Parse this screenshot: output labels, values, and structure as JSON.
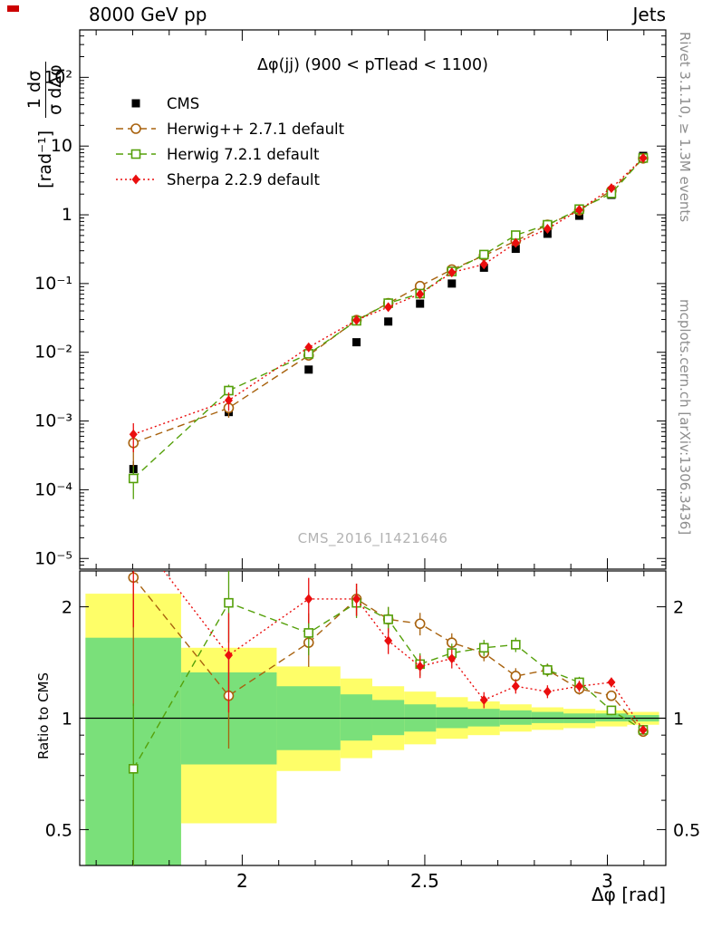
{
  "header": {
    "left": "8000 GeV pp",
    "right": "Jets"
  },
  "watermark": "CMS_2016_I1421646",
  "notes": {
    "rivet": "Rivet 3.1.10, ≥ 1.3M events",
    "mcplots": "mcplots.cern.ch [arXiv:1306.3436]"
  },
  "axis_labels": {
    "y_num": "1 dσ",
    "y_den": "σ dΔφ",
    "y_units": "[rad⁻¹]"
  },
  "chart_data": {
    "type": "line",
    "panels": [
      "distribution",
      "ratio"
    ],
    "title": "Δφ(jj) (900 < pTlead < 1100)",
    "xlabel": "Δφ [rad]",
    "ylabel": "1/σ dσ/dΔφ [rad⁻¹]",
    "ratio_ylabel": "Ratio to CMS",
    "xlim": [
      1.555,
      3.16
    ],
    "xticks": [
      {
        "v": 2,
        "label": "2"
      },
      {
        "v": 2.5,
        "label": "2.5"
      },
      {
        "v": 3,
        "label": "3"
      }
    ],
    "x_minor_step": 0.1,
    "bin_edges": [
      1.5708,
      1.8326,
      2.0944,
      2.2689,
      2.3562,
      2.4435,
      2.5307,
      2.618,
      2.7053,
      2.7925,
      2.8798,
      2.9671,
      3.0543,
      3.1416
    ],
    "x": [
      1.702,
      1.963,
      2.182,
      2.313,
      2.4,
      2.487,
      2.574,
      2.662,
      2.749,
      2.836,
      2.923,
      3.011,
      3.098
    ],
    "main": {
      "ylim": [
        7e-06,
        490
      ],
      "yticks": [
        {
          "v": 100,
          "label": "10²"
        },
        {
          "v": 10,
          "label": "10"
        },
        {
          "v": 1,
          "label": "1"
        },
        {
          "v": 0.1,
          "label": "10⁻¹"
        },
        {
          "v": 0.01,
          "label": "10⁻²"
        },
        {
          "v": 0.001,
          "label": "10⁻³"
        },
        {
          "v": 0.0001,
          "label": "10⁻⁴"
        },
        {
          "v": 1e-05,
          "label": "10⁻⁵"
        }
      ]
    },
    "ratio": {
      "ylim": [
        0.4,
        2.5
      ],
      "yticks": [
        {
          "v": 2,
          "label": "2"
        },
        {
          "v": 1,
          "label": "1"
        },
        {
          "v": 0.5,
          "label": "0.5"
        }
      ]
    },
    "series": [
      {
        "id": "cms",
        "name": "CMS",
        "marker": "square-filled",
        "color": "#000000",
        "line": "none",
        "values": [
          0.0002,
          0.00135,
          0.0056,
          0.014,
          0.028,
          0.051,
          0.1,
          0.17,
          0.32,
          0.53,
          0.97,
          1.95,
          7.2
        ],
        "yerr_rel": [
          0.3,
          0.12,
          0.07,
          0.05,
          0.04,
          0.035,
          0.03,
          0.025,
          0.02,
          0.02,
          0.015,
          0.012,
          0.01
        ],
        "ratio": null
      },
      {
        "id": "herwigpp",
        "name": "Herwig++ 2.7.1 default",
        "marker": "circle-open",
        "color": "#a8620e",
        "line": "dashed",
        "values": [
          0.00048,
          0.00155,
          0.009,
          0.0294,
          0.0518,
          0.0918,
          0.16,
          0.255,
          0.416,
          0.716,
          1.16,
          2.24,
          6.62
        ],
        "ratio": [
          2.4,
          1.15,
          1.6,
          2.1,
          1.85,
          1.8,
          1.6,
          1.5,
          1.3,
          1.35,
          1.2,
          1.15,
          0.92
        ],
        "yerr_rel": [
          0.55,
          0.28,
          0.14,
          0.1,
          0.08,
          0.07,
          0.06,
          0.05,
          0.05,
          0.04,
          0.035,
          0.03,
          0.025
        ]
      },
      {
        "id": "herwig7",
        "name": "Herwig 7.2.1 default",
        "marker": "square-open",
        "color": "#55a00a",
        "line": "dashed",
        "values": [
          0.000146,
          0.00277,
          0.0095,
          0.0287,
          0.0518,
          0.0714,
          0.15,
          0.264,
          0.506,
          0.716,
          1.21,
          2.05,
          6.7
        ],
        "ratio": [
          0.73,
          2.05,
          1.7,
          2.05,
          1.85,
          1.4,
          1.5,
          1.55,
          1.58,
          1.35,
          1.25,
          1.05,
          0.93
        ],
        "yerr_rel": [
          0.5,
          0.22,
          0.13,
          0.09,
          0.08,
          0.07,
          0.06,
          0.05,
          0.045,
          0.04,
          0.035,
          0.03,
          0.025
        ]
      },
      {
        "id": "sherpa",
        "name": "Sherpa 2.2.9 default",
        "marker": "diamond-filled",
        "color": "#ea0e0e",
        "line": "dotted",
        "values": [
          0.00064,
          0.002,
          0.0118,
          0.0294,
          0.0454,
          0.0704,
          0.145,
          0.19,
          0.39,
          0.625,
          1.18,
          2.44,
          6.7
        ],
        "ratio": [
          3.2,
          1.48,
          2.1,
          2.1,
          1.62,
          1.38,
          1.45,
          1.12,
          1.22,
          1.18,
          1.22,
          1.25,
          0.93
        ],
        "yerr_rel": [
          0.45,
          0.3,
          0.14,
          0.1,
          0.08,
          0.07,
          0.06,
          0.05,
          0.045,
          0.04,
          0.035,
          0.03,
          0.025
        ]
      }
    ],
    "bands": {
      "yellow_color": "#fefe68",
      "green_color": "#7ae07a",
      "yellow": [
        [
          0.3,
          2.17
        ],
        [
          0.52,
          1.55
        ],
        [
          0.72,
          1.38
        ],
        [
          0.78,
          1.28
        ],
        [
          0.82,
          1.22
        ],
        [
          0.85,
          1.18
        ],
        [
          0.88,
          1.14
        ],
        [
          0.9,
          1.11
        ],
        [
          0.92,
          1.09
        ],
        [
          0.93,
          1.07
        ],
        [
          0.94,
          1.06
        ],
        [
          0.95,
          1.05
        ],
        [
          0.96,
          1.04
        ]
      ],
      "green": [
        [
          0.35,
          1.65
        ],
        [
          0.75,
          1.33
        ],
        [
          0.82,
          1.22
        ],
        [
          0.87,
          1.16
        ],
        [
          0.9,
          1.12
        ],
        [
          0.92,
          1.09
        ],
        [
          0.94,
          1.07
        ],
        [
          0.95,
          1.06
        ],
        [
          0.96,
          1.05
        ],
        [
          0.97,
          1.04
        ],
        [
          0.97,
          1.03
        ],
        [
          0.98,
          1.03
        ],
        [
          0.98,
          1.02
        ]
      ]
    }
  }
}
